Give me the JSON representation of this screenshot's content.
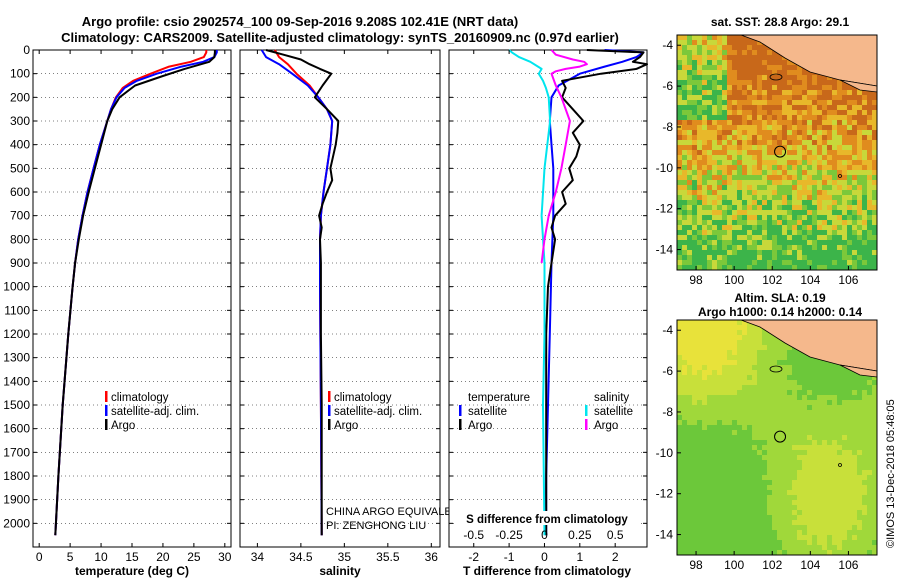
{
  "header": {
    "line1": "Argo profile: csio 2902574_100 09-Sep-2016 9.208S 102.41E (NRT data)",
    "line2": "Climatology: CARS2009. Satellite-adjusted climatology: synTS_20160909.nc (0.97d earlier)"
  },
  "colors": {
    "climatology": "#ff0000",
    "satellite": "#0000ff",
    "argo": "#000000",
    "sat_s": "#00e5ee",
    "argo_s": "#ff00ff",
    "land": "#f5b88c"
  },
  "chart_data": [
    {
      "id": "temperature",
      "type": "line",
      "xlabel": "temperature (deg C)",
      "ylabel": "",
      "xlim": [
        -1,
        31
      ],
      "ylim": [
        2100,
        0
      ],
      "xticks": [
        0,
        5,
        10,
        15,
        20,
        25,
        30
      ],
      "yticks": [
        0,
        100,
        200,
        300,
        400,
        500,
        600,
        700,
        800,
        900,
        1000,
        1100,
        1200,
        1300,
        1400,
        1500,
        1600,
        1700,
        1800,
        1900,
        2000
      ],
      "legend": [
        "climatology",
        "satellite-adj. clim.",
        "Argo"
      ],
      "series": [
        {
          "name": "climatology",
          "color": "#ff0000",
          "depth": [
            0,
            10,
            30,
            50,
            70,
            100,
            130,
            160,
            200,
            250,
            300,
            400,
            500,
            600,
            700,
            800,
            900,
            1000,
            1200,
            1500,
            1800,
            2050
          ],
          "values": [
            27,
            27,
            26.6,
            24.5,
            21,
            18,
            15.2,
            13.5,
            12.4,
            11.6,
            11,
            9.8,
            8.8,
            7.8,
            7,
            6.3,
            5.8,
            5.4,
            4.7,
            3.8,
            3.1,
            2.6
          ]
        },
        {
          "name": "satellite-adj. clim.",
          "color": "#0000ff",
          "depth": [
            0,
            10,
            30,
            50,
            70,
            100,
            130,
            160,
            200,
            250,
            300,
            400,
            500,
            600,
            700,
            800,
            900,
            1000,
            1200,
            1500,
            1800,
            2050
          ],
          "values": [
            28.7,
            28.7,
            28.3,
            26.5,
            23,
            19,
            15.8,
            13.8,
            12.5,
            11.6,
            11,
            9.8,
            8.8,
            7.8,
            7,
            6.3,
            5.8,
            5.4,
            4.7,
            3.8,
            3.1,
            2.6
          ]
        },
        {
          "name": "Argo",
          "color": "#000000",
          "depth": [
            0,
            10,
            30,
            50,
            80,
            110,
            150,
            200,
            250,
            300,
            400,
            500,
            600,
            700,
            800,
            900,
            1000,
            1200,
            1500,
            1800,
            2050
          ],
          "values": [
            28.4,
            28.4,
            28.3,
            27.5,
            23.5,
            20,
            15.5,
            13,
            11.8,
            11,
            10,
            9,
            8,
            7.1,
            6.4,
            5.8,
            5.4,
            4.7,
            3.8,
            3.1,
            2.6
          ]
        }
      ]
    },
    {
      "id": "salinity",
      "type": "line",
      "xlabel": "salinity",
      "ylabel": "",
      "xlim": [
        33.8,
        36.1
      ],
      "ylim": [
        2100,
        0
      ],
      "xticks": [
        34,
        34.5,
        35,
        35.5,
        36
      ],
      "legend": [
        "climatology",
        "satellite-adj. clim.",
        "Argo"
      ],
      "series": [
        {
          "name": "climatology",
          "color": "#ff0000",
          "depth": [
            0,
            30,
            60,
            100,
            150,
            200,
            250,
            300,
            400,
            500,
            600,
            700,
            800,
            1000,
            1500,
            2050
          ],
          "values": [
            34.2,
            34.25,
            34.35,
            34.45,
            34.6,
            34.7,
            34.8,
            34.86,
            34.84,
            34.8,
            34.76,
            34.73,
            34.72,
            34.72,
            34.73,
            34.74
          ]
        },
        {
          "name": "satellite-adj. clim.",
          "color": "#0000ff",
          "depth": [
            0,
            30,
            60,
            100,
            150,
            200,
            250,
            300,
            400,
            500,
            600,
            700,
            800,
            1000,
            1500,
            2050
          ],
          "values": [
            34.05,
            34.1,
            34.25,
            34.4,
            34.58,
            34.7,
            34.8,
            34.86,
            34.84,
            34.8,
            34.76,
            34.73,
            34.72,
            34.72,
            34.73,
            34.74
          ]
        },
        {
          "name": "Argo",
          "color": "#000000",
          "depth": [
            0,
            20,
            40,
            60,
            80,
            100,
            150,
            200,
            250,
            300,
            350,
            400,
            500,
            550,
            600,
            650,
            700,
            750,
            800,
            900,
            1000,
            1200,
            1500,
            1800,
            2050
          ],
          "values": [
            34.1,
            34.3,
            34.5,
            34.6,
            34.72,
            34.85,
            34.75,
            34.66,
            34.8,
            34.93,
            34.92,
            34.9,
            34.84,
            34.86,
            34.8,
            34.75,
            34.71,
            34.74,
            34.72,
            34.73,
            34.73,
            34.73,
            34.74,
            34.74,
            34.74
          ]
        }
      ]
    },
    {
      "id": "difference",
      "type": "line",
      "xlabel": "T difference from climatology",
      "xlabel_top": "S difference from climatology",
      "xlim": [
        -2.7,
        2.9
      ],
      "ylim": [
        2100,
        0
      ],
      "xticks": [
        -2,
        -1,
        0,
        1,
        2
      ],
      "xticks_top": [
        -0.5,
        -0.25,
        0,
        0.25,
        0.5
      ],
      "legend_left_title": "temperature",
      "legend_right_title": "salinity",
      "legend": [
        "satellite",
        "Argo"
      ],
      "series": [
        {
          "name": "T satellite",
          "color": "#0000ff",
          "depth": [
            0,
            10,
            30,
            50,
            70,
            100,
            150,
            200,
            300,
            400,
            500,
            700,
            900,
            1200,
            1500,
            1800,
            2050
          ],
          "values": [
            1.7,
            2.8,
            2.6,
            2.2,
            1.7,
            1.0,
            0.4,
            0.2,
            0.15,
            0.2,
            0.25,
            0.25,
            0.2,
            0.15,
            0.1,
            0.05,
            0.05
          ]
        },
        {
          "name": "T Argo",
          "color": "#000000",
          "depth": [
            0,
            10,
            30,
            50,
            60,
            80,
            100,
            130,
            160,
            200,
            250,
            300,
            350,
            400,
            450,
            500,
            550,
            600,
            650,
            700,
            750,
            800,
            900,
            1000,
            1200,
            1500,
            1800,
            2050
          ],
          "values": [
            1.2,
            2.8,
            2.7,
            2.5,
            2.9,
            2.6,
            1.6,
            0.5,
            0.6,
            0.5,
            0.8,
            1.1,
            0.8,
            1.0,
            0.9,
            0.7,
            0.8,
            0.5,
            0.6,
            0.3,
            0.2,
            0.3,
            0.2,
            0.1,
            0.05,
            0.05,
            0.05,
            0.05
          ]
        },
        {
          "name": "S satellite",
          "color": "#00e5ee",
          "depth": [
            0,
            10,
            30,
            50,
            80,
            100,
            130,
            160,
            200,
            300,
            400,
            500,
            700,
            900,
            1200,
            1500,
            2050
          ],
          "values": [
            -0.25,
            -0.23,
            -0.18,
            -0.1,
            -0.02,
            -0.04,
            -0.01,
            0.01,
            0.03,
            0.04,
            0.02,
            0.0,
            -0.02,
            0.0,
            0.0,
            -0.01,
            0.0
          ]
        },
        {
          "name": "S Argo",
          "color": "#ff00ff",
          "depth": [
            0,
            20,
            40,
            50,
            60,
            70,
            80,
            90,
            100,
            150,
            200,
            300,
            400,
            500,
            600,
            700,
            800,
            900
          ],
          "values": [
            0.05,
            0.08,
            0.2,
            0.28,
            0.3,
            0.25,
            0.15,
            0.08,
            0.05,
            0.08,
            0.12,
            0.18,
            0.15,
            0.12,
            0.08,
            0.03,
            0.0,
            -0.02
          ]
        }
      ]
    },
    {
      "id": "sst_map",
      "type": "heatmap",
      "title": "sat. SST: 28.8 Argo: 29.1",
      "xlim": [
        97,
        107.5
      ],
      "ylim": [
        -15,
        -3.5
      ],
      "xticks": [
        98,
        100,
        102,
        104,
        106
      ],
      "yticks": [
        -4,
        -6,
        -8,
        -10,
        -12,
        -14
      ],
      "argo_position": {
        "lon": 102.41,
        "lat": -9.208
      }
    },
    {
      "id": "sla_map",
      "type": "heatmap",
      "title": "Altim. SLA: 0.19",
      "subtitle": "Argo h1000: 0.14 h2000: 0.14",
      "xlim": [
        97,
        107.5
      ],
      "ylim": [
        -15,
        -3.5
      ],
      "xticks": [
        98,
        100,
        102,
        104,
        106
      ],
      "yticks": [
        -4,
        -6,
        -8,
        -10,
        -12,
        -14
      ],
      "argo_position": {
        "lon": 102.41,
        "lat": -9.208
      }
    }
  ],
  "annotations": {
    "equivalent": "CHINA ARGO EQUIVALENT",
    "pi": "PI: ZENGHONG LIU"
  },
  "watermark": "©IMOS 13-Dec-2018 05:48:05"
}
